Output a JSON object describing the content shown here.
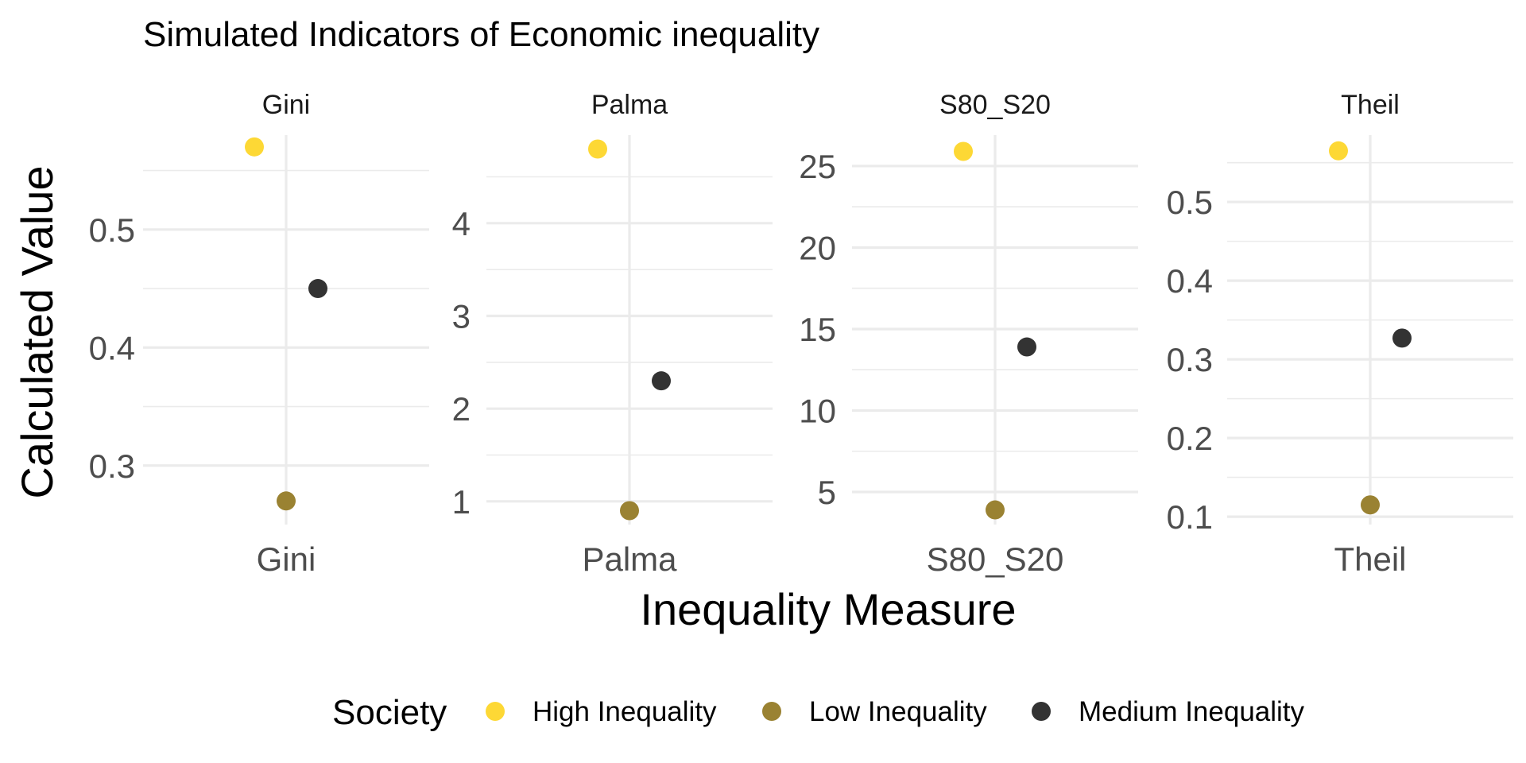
{
  "chart_data": {
    "type": "scatter",
    "title": "Simulated Indicators of Economic inequality",
    "xlabel": "Inequality Measure",
    "ylabel": "Calculated Value",
    "grid": true,
    "legend": {
      "title": "Society",
      "position": "bottom",
      "entries": [
        {
          "name": "High Inequality",
          "color": "#FDD835"
        },
        {
          "name": "Low Inequality",
          "color": "#9A8232"
        },
        {
          "name": "Medium Inequality",
          "color": "#333333"
        }
      ]
    },
    "facets": [
      {
        "name": "Gini",
        "strip_label": "Gini",
        "x_tick": "Gini",
        "ylim": [
          0.25,
          0.58
        ],
        "yticks": [
          0.3,
          0.4,
          0.5
        ],
        "ytick_labels": [
          "0.3",
          "0.4",
          "0.5"
        ],
        "points": [
          {
            "society": "High Inequality",
            "value": 0.57
          },
          {
            "society": "Low Inequality",
            "value": 0.27
          },
          {
            "society": "Medium Inequality",
            "value": 0.45
          }
        ]
      },
      {
        "name": "Palma",
        "strip_label": "Palma",
        "x_tick": "Palma",
        "ylim": [
          0.75,
          4.95
        ],
        "yticks": [
          1,
          2,
          3,
          4
        ],
        "ytick_labels": [
          "1",
          "2",
          "3",
          "4"
        ],
        "points": [
          {
            "society": "High Inequality",
            "value": 4.8
          },
          {
            "society": "Low Inequality",
            "value": 0.9
          },
          {
            "society": "Medium Inequality",
            "value": 2.3
          }
        ]
      },
      {
        "name": "S80_S20",
        "strip_label": "S80_S20",
        "x_tick": "S80_S20",
        "ylim": [
          3.0,
          26.9
        ],
        "yticks": [
          5,
          10,
          15,
          20,
          25
        ],
        "ytick_labels": [
          "5",
          "10",
          "15",
          "20",
          "25"
        ],
        "points": [
          {
            "society": "High Inequality",
            "value": 25.9
          },
          {
            "society": "Low Inequality",
            "value": 3.9
          },
          {
            "society": "Medium Inequality",
            "value": 13.9
          }
        ]
      },
      {
        "name": "Theil",
        "strip_label": "Theil",
        "x_tick": "Theil",
        "ylim": [
          0.09,
          0.585
        ],
        "yticks": [
          0.1,
          0.2,
          0.3,
          0.4,
          0.5
        ],
        "ytick_labels": [
          "0.1",
          "0.2",
          "0.3",
          "0.4",
          "0.5"
        ],
        "points": [
          {
            "society": "High Inequality",
            "value": 0.565
          },
          {
            "society": "Low Inequality",
            "value": 0.115
          },
          {
            "society": "Medium Inequality",
            "value": 0.327
          }
        ]
      }
    ]
  }
}
